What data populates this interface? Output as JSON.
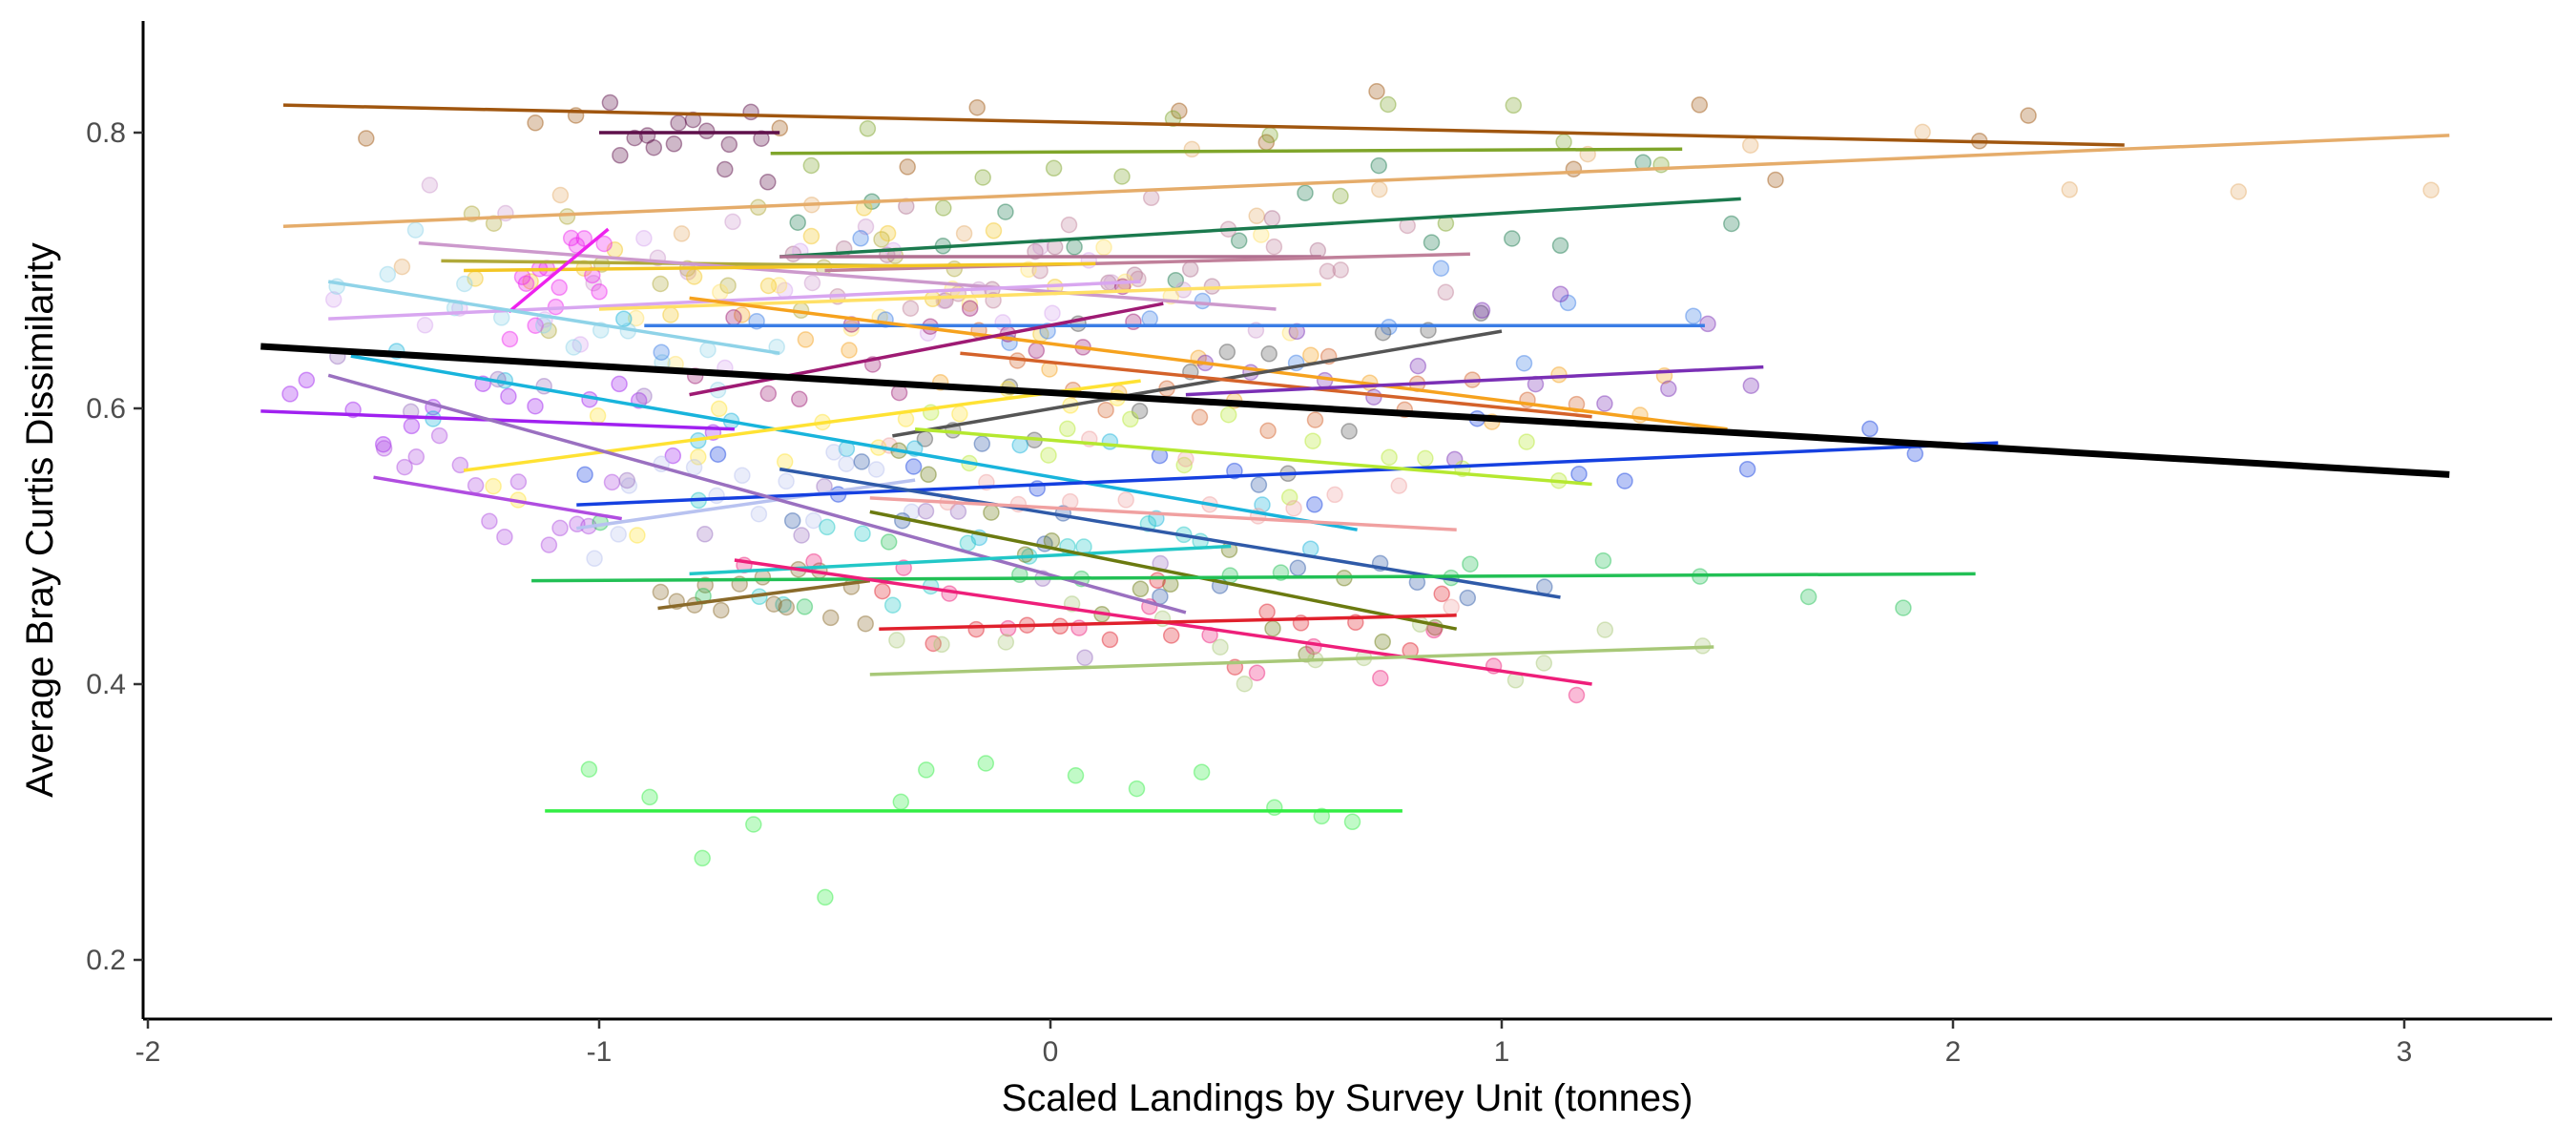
{
  "chart_data": {
    "type": "scatter",
    "title": "",
    "xlabel": "Scaled Landings by Survey Unit (tonnes)",
    "ylabel": "Average Bray Curtis Dissimilarity",
    "xlim": [
      -2,
      3.35
    ],
    "ylim": [
      0.155,
      0.88
    ],
    "x_ticks": [
      -2,
      -1,
      0,
      1,
      2,
      3
    ],
    "x_tick_labels": [
      "-2",
      "-1",
      "0",
      "1",
      "2",
      "3"
    ],
    "y_ticks": [
      0.2,
      0.4,
      0.6,
      0.8
    ],
    "y_tick_labels": [
      "0.2",
      "0.4",
      "0.6",
      "0.8"
    ],
    "grid": false,
    "legend": "none",
    "overall_fit": {
      "color": "#000000",
      "x": [
        -1.75,
        3.1
      ],
      "y": [
        0.645,
        0.552
      ]
    },
    "group_fits": [
      {
        "color": "#a0560f",
        "x": [
          -1.7,
          2.38
        ],
        "y": [
          0.82,
          0.791
        ]
      },
      {
        "color": "#e5ac6a",
        "x": [
          -1.7,
          3.1
        ],
        "y": [
          0.732,
          0.798
        ]
      },
      {
        "color": "#5e0f4a",
        "x": [
          -1.0,
          -0.6
        ],
        "y": [
          0.8,
          0.8
        ]
      },
      {
        "color": "#7fa52a",
        "x": [
          -0.62,
          1.4
        ],
        "y": [
          0.785,
          0.788
        ]
      },
      {
        "color": "#1b7a4e",
        "x": [
          -0.6,
          1.53
        ],
        "y": [
          0.71,
          0.752
        ]
      },
      {
        "color": "#b0a93a",
        "x": [
          -1.35,
          -0.2
        ],
        "y": [
          0.707,
          0.703
        ]
      },
      {
        "color": "#b07090",
        "x": [
          -0.6,
          0.6
        ],
        "y": [
          0.71,
          0.71
        ]
      },
      {
        "color": "#c0809a",
        "x": [
          -0.5,
          0.93
        ],
        "y": [
          0.7,
          0.712
        ]
      },
      {
        "color": "#cc99cc",
        "x": [
          -1.4,
          0.5
        ],
        "y": [
          0.72,
          0.672
        ]
      },
      {
        "color": "#d8a6f0",
        "x": [
          -1.6,
          0.2
        ],
        "y": [
          0.665,
          0.692
        ]
      },
      {
        "color": "#ffe066",
        "x": [
          -1.0,
          0.6
        ],
        "y": [
          0.672,
          0.69
        ]
      },
      {
        "color": "#f3c623",
        "x": [
          -1.3,
          0.1
        ],
        "y": [
          0.7,
          0.705
        ]
      },
      {
        "color": "#ee22ee",
        "x": [
          -1.2,
          -0.98
        ],
        "y": [
          0.67,
          0.73
        ]
      },
      {
        "color": "#8fd3e8",
        "x": [
          -1.6,
          -0.6
        ],
        "y": [
          0.692,
          0.64
        ]
      },
      {
        "color": "#3a7de6",
        "x": [
          -0.9,
          1.45
        ],
        "y": [
          0.66,
          0.66
        ]
      },
      {
        "color": "#f6a21e",
        "x": [
          -0.8,
          1.5
        ],
        "y": [
          0.68,
          0.585
        ]
      },
      {
        "color": "#555555",
        "x": [
          -0.35,
          1.0
        ],
        "y": [
          0.58,
          0.656
        ]
      },
      {
        "color": "#d4622a",
        "x": [
          -0.2,
          1.2
        ],
        "y": [
          0.64,
          0.594
        ]
      },
      {
        "color": "#7a2fb5",
        "x": [
          0.3,
          1.58
        ],
        "y": [
          0.61,
          0.63
        ]
      },
      {
        "color": "#9e1a73",
        "x": [
          -0.8,
          0.25
        ],
        "y": [
          0.61,
          0.676
        ]
      },
      {
        "color": "#a020f0",
        "x": [
          -1.75,
          -0.7
        ],
        "y": [
          0.598,
          0.585
        ]
      },
      {
        "color": "#18b4dc",
        "x": [
          -1.55,
          0.68
        ],
        "y": [
          0.638,
          0.512
        ]
      },
      {
        "color": "#b04de0",
        "x": [
          -1.5,
          -0.95
        ],
        "y": [
          0.55,
          0.52
        ]
      },
      {
        "color": "#ffe233",
        "x": [
          -1.3,
          0.2
        ],
        "y": [
          0.555,
          0.62
        ]
      },
      {
        "color": "#b8c2f0",
        "x": [
          -1.05,
          -0.3
        ],
        "y": [
          0.513,
          0.548
        ]
      },
      {
        "color": "#1540e0",
        "x": [
          -1.05,
          2.1
        ],
        "y": [
          0.53,
          0.575
        ]
      },
      {
        "color": "#b5e830",
        "x": [
          -0.3,
          1.2
        ],
        "y": [
          0.585,
          0.545
        ]
      },
      {
        "color": "#9a70c0",
        "x": [
          -1.6,
          0.3
        ],
        "y": [
          0.624,
          0.452
        ]
      },
      {
        "color": "#2f5aa8",
        "x": [
          -0.6,
          1.13
        ],
        "y": [
          0.556,
          0.463
        ]
      },
      {
        "color": "#f0a0a0",
        "x": [
          -0.4,
          0.9
        ],
        "y": [
          0.535,
          0.512
        ]
      },
      {
        "color": "#22c7c7",
        "x": [
          -0.8,
          0.4
        ],
        "y": [
          0.48,
          0.5
        ]
      },
      {
        "color": "#6b7a10",
        "x": [
          -0.4,
          0.9
        ],
        "y": [
          0.525,
          0.44
        ]
      },
      {
        "color": "#8a6a2a",
        "x": [
          -0.87,
          -0.4
        ],
        "y": [
          0.455,
          0.475
        ]
      },
      {
        "color": "#22c055",
        "x": [
          -1.15,
          2.05
        ],
        "y": [
          0.475,
          0.48
        ]
      },
      {
        "color": "#ee1f7a",
        "x": [
          -0.7,
          1.2
        ],
        "y": [
          0.49,
          0.4
        ]
      },
      {
        "color": "#e0202c",
        "x": [
          -0.38,
          0.9
        ],
        "y": [
          0.44,
          0.45
        ]
      },
      {
        "color": "#a8c878",
        "x": [
          -0.4,
          1.47
        ],
        "y": [
          0.407,
          0.427
        ]
      },
      {
        "color": "#33ee44",
        "x": [
          -1.12,
          0.78
        ],
        "y": [
          0.308,
          0.308
        ]
      }
    ]
  }
}
